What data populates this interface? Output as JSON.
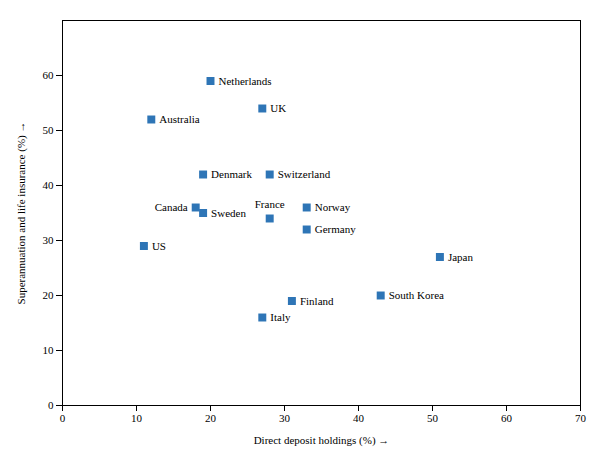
{
  "chart_data": {
    "type": "scatter",
    "xlabel": "Direct deposit holdings (%)",
    "ylabel": "Superannuation and life insurance (%)",
    "labels": [
      "Netherlands",
      "UK",
      "Australia",
      "Denmark",
      "Switzerland",
      "Canada",
      "Sweden",
      "Norway",
      "France",
      "Germany",
      "US",
      "Japan",
      "Finland",
      "Italy",
      "South Korea"
    ],
    "x": [
      20,
      27,
      12,
      19,
      28,
      18,
      19,
      33,
      28,
      33,
      11,
      51,
      31,
      27,
      43
    ],
    "values": [
      59,
      54,
      52,
      42,
      42,
      36,
      35,
      36,
      34,
      32,
      29,
      27,
      19,
      16,
      20
    ],
    "color": "#2e75b6",
    "marker": "square",
    "xlim": [
      0,
      70
    ],
    "ylim": [
      0,
      70
    ],
    "xticks": [
      0,
      10,
      20,
      30,
      40,
      50,
      60,
      70
    ],
    "yticks": [
      0,
      10,
      20,
      30,
      40,
      50,
      60
    ],
    "grid": false
  }
}
